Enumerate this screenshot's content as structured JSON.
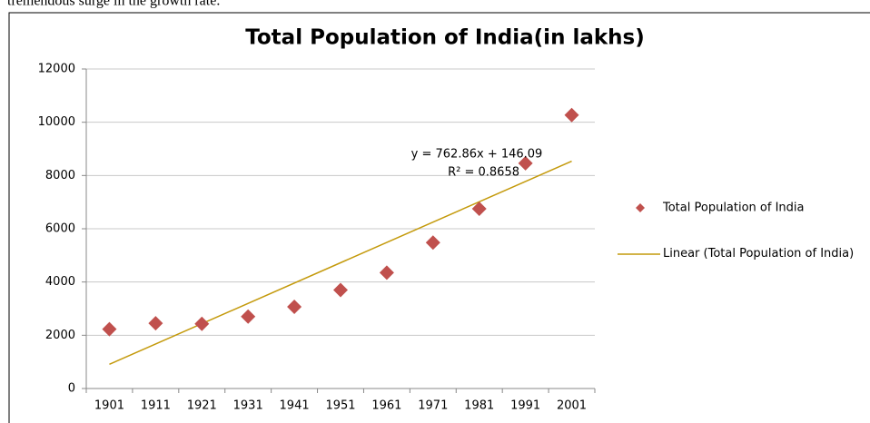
{
  "caption": "tremendous surge in the growth rate.",
  "chart_data": {
    "type": "scatter",
    "title": "Total Population of India(in lakhs)",
    "categories": [
      "1901",
      "1911",
      "1921",
      "1931",
      "1941",
      "1951",
      "1961",
      "1971",
      "1981",
      "1991",
      "2001"
    ],
    "series": [
      {
        "name": "Total Population of India",
        "color": "#c0504d",
        "values": [
          2230,
          2450,
          2430,
          2700,
          3070,
          3700,
          4350,
          5480,
          6750,
          8460,
          10270
        ]
      }
    ],
    "trendline": {
      "name": "Linear (Total Population of India)",
      "color": "#c49a0c",
      "slope": 762.86,
      "intercept": 146.09,
      "equation": "y = 762.86x + 146.09",
      "r2": "R² = 0.8658"
    },
    "ylim": [
      0,
      12000
    ],
    "yticks": [
      0,
      2000,
      4000,
      6000,
      8000,
      10000,
      12000
    ],
    "grid": true
  }
}
